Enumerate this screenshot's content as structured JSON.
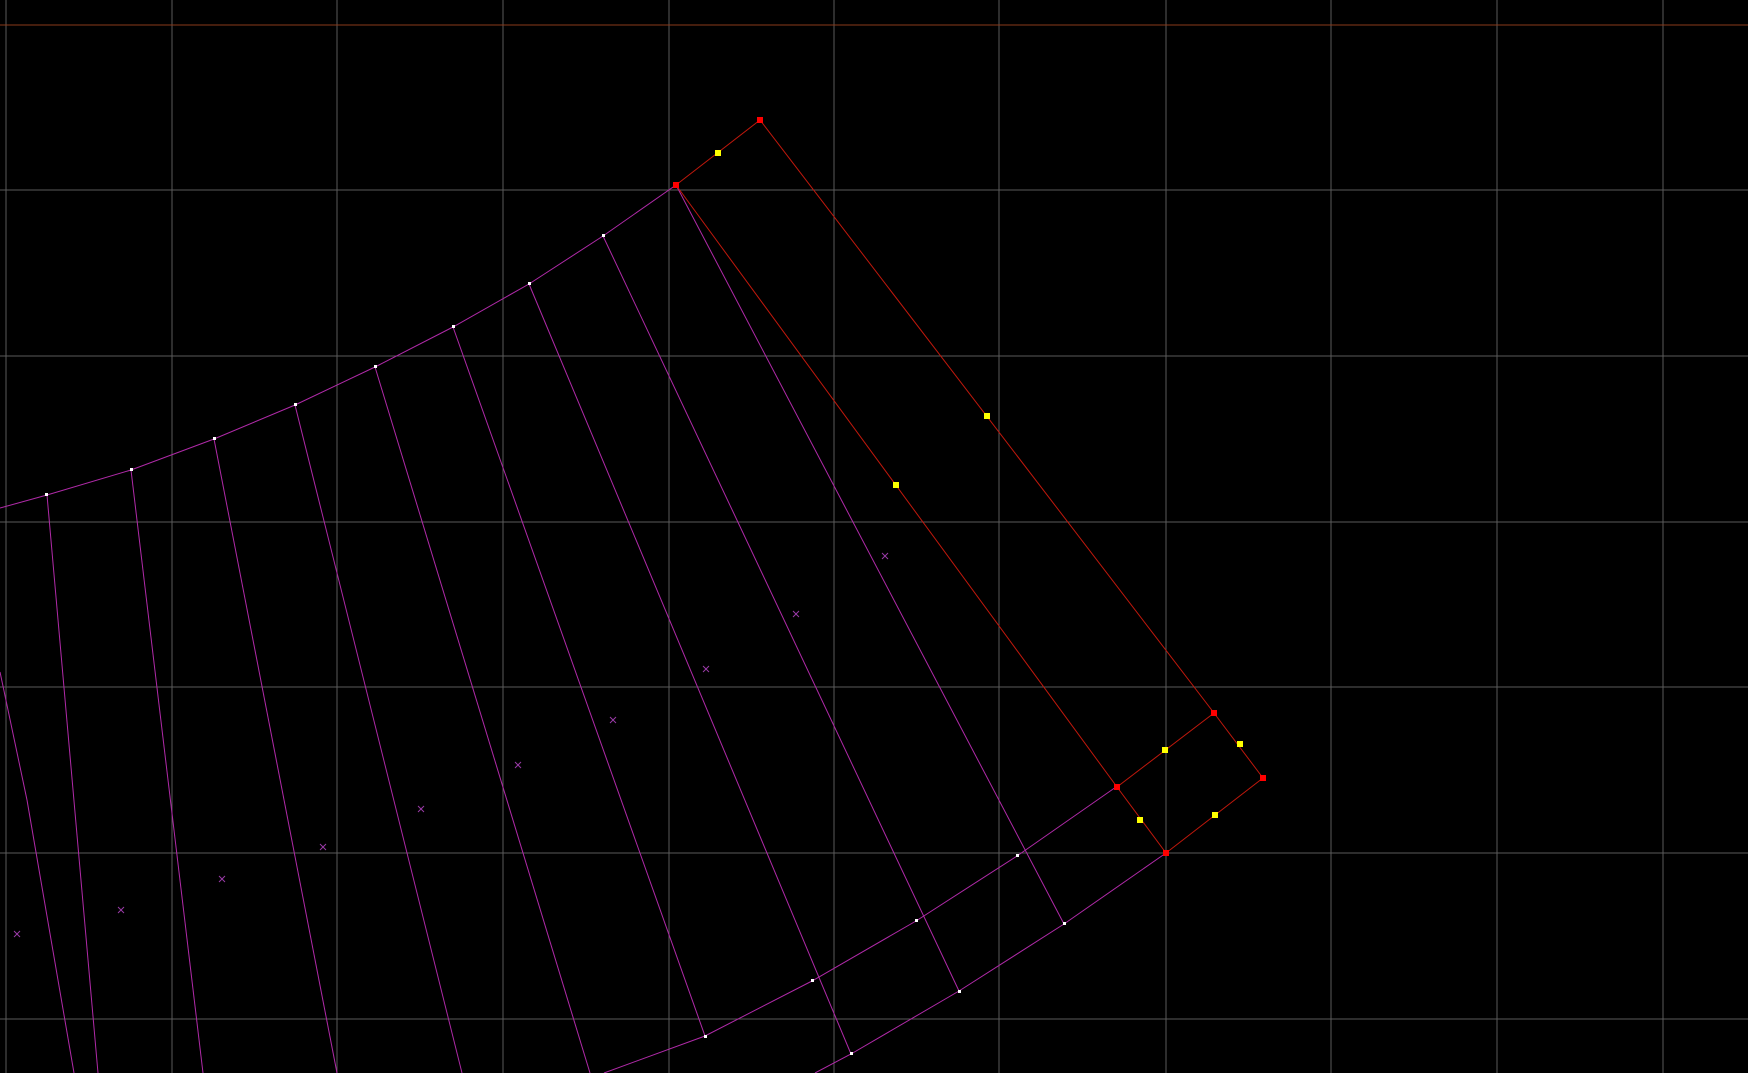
{
  "app": {
    "view": "map-editor-2d-viewport"
  },
  "colors": {
    "background": "#000000",
    "grid": "#5a5a5a",
    "axis": "#8a3a1a",
    "walls": "#b02aa8",
    "selection": "#c0180c",
    "vertex": "#ffffff",
    "selected_vertex": "#ff0000",
    "selected_midpoint": "#ffff00",
    "thing_marker": "#9a3aa8"
  },
  "markers": {
    "thing_icon": "cross-x-icon"
  }
}
